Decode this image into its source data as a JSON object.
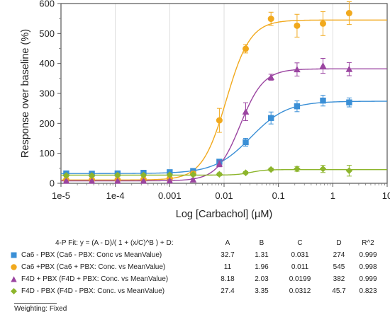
{
  "chart_data": {
    "type": "scatter",
    "xscale": "log",
    "xlabel": "Log [Carbachol] (µM)",
    "ylabel": "Response over baseline (%)",
    "xlim": [
      1e-05,
      10
    ],
    "ylim": [
      0,
      600
    ],
    "x_ticks": [
      "1e-5",
      "1e-4",
      "0.001",
      "0.01",
      "0.1",
      "1",
      "10"
    ],
    "y_ticks": [
      "0",
      "100",
      "200",
      "300",
      "400",
      "500",
      "600"
    ],
    "fit_model": "4-P Fit: y = (A - D)/( 1 + (x/C)^B ) + D:",
    "fit_columns": [
      "A",
      "B",
      "C",
      "D",
      "R^2"
    ],
    "series": [
      {
        "name": "Ca6 - PBX (Ca6 - PBX: Conc vs MeanValue)",
        "color": "#3a8fd6",
        "marker": "square",
        "x": [
          1.25e-05,
          3.7e-05,
          0.00011,
          0.00033,
          0.001,
          0.0027,
          0.0082,
          0.025,
          0.073,
          0.22,
          0.66,
          2.0
        ],
        "y": [
          33,
          32,
          33,
          35,
          37,
          41,
          72,
          137,
          218,
          257,
          276,
          270
        ],
        "err": [
          6,
          5,
          5,
          5,
          5,
          6,
          8,
          13,
          20,
          18,
          18,
          15
        ],
        "fit": {
          "A": "32.7",
          "B": "1.31",
          "C": "0.031",
          "D": "274",
          "R2": "0.999"
        }
      },
      {
        "name": "Ca6 +PBX (Ca6 + PBX: Conc. vs MeanValue)",
        "color": "#f1a91d",
        "marker": "circle",
        "x": [
          1.25e-05,
          3.7e-05,
          0.00011,
          0.00033,
          0.001,
          0.0027,
          0.0082,
          0.025,
          0.073,
          0.22,
          0.66,
          2.0
        ],
        "y": [
          12,
          12,
          12,
          13,
          16,
          32,
          210,
          449,
          549,
          526,
          533,
          568
        ],
        "err": [
          4,
          4,
          4,
          4,
          4,
          8,
          40,
          14,
          22,
          38,
          40,
          38
        ],
        "fit": {
          "A": "11",
          "B": "1.96",
          "C": "0.011",
          "D": "545",
          "R2": "0.998"
        }
      },
      {
        "name": "F4D + PBX (F4D + PBX: Conc. vs MeanValue)",
        "color": "#9b45a1",
        "marker": "triangle",
        "x": [
          1.25e-05,
          3.7e-05,
          0.00011,
          0.00033,
          0.001,
          0.0027,
          0.0082,
          0.025,
          0.073,
          0.22,
          0.66,
          2.0
        ],
        "y": [
          8,
          8,
          8,
          8,
          9,
          12,
          65,
          239,
          354,
          380,
          392,
          381
        ],
        "err": [
          3,
          3,
          3,
          3,
          3,
          5,
          10,
          30,
          10,
          22,
          25,
          22
        ],
        "fit": {
          "A": "8.18",
          "B": "2.03",
          "C": "0.0199",
          "D": "382",
          "R2": "0.999"
        }
      },
      {
        "name": "F4D - PBX (F4D - PBX: Conc. vs MeanValue)",
        "color": "#8db52c",
        "marker": "diamond",
        "x": [
          1.25e-05,
          3.7e-05,
          0.00011,
          0.00033,
          0.001,
          0.0027,
          0.0082,
          0.025,
          0.073,
          0.22,
          0.66,
          2.0
        ],
        "y": [
          26,
          26,
          27,
          27,
          28,
          29,
          30,
          35,
          46,
          48,
          48,
          42
        ],
        "err": [
          4,
          4,
          4,
          4,
          4,
          4,
          5,
          4,
          5,
          8,
          12,
          18
        ],
        "fit": {
          "A": "27.4",
          "B": "3.35",
          "C": "0.0312",
          "D": "45.7",
          "R2": "0.823"
        }
      }
    ]
  },
  "footer": {
    "weighting": "Weighting: Fixed"
  }
}
